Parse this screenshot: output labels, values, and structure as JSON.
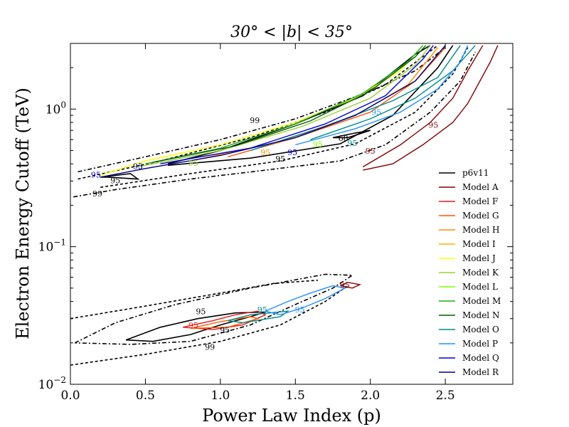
{
  "chart_data": {
    "type": "line",
    "title": "30° < |b| < 35°",
    "xlabel": "Power Law Index (p)",
    "ylabel": "Electron Energy Cutoff (TeV)",
    "xlim": [
      0.0,
      2.95
    ],
    "ylim": [
      0.01,
      3.0
    ],
    "yscale": "log",
    "x_ticks": [
      0.0,
      0.5,
      1.0,
      1.5,
      2.0,
      2.5
    ],
    "x_tick_labels": [
      "0.0",
      "0.5",
      "1.0",
      "1.5",
      "2.0",
      "2.5"
    ],
    "y_ticks": [
      0.01,
      0.1,
      1.0
    ],
    "y_tick_labels": [
      {
        "base": "10",
        "exp": "−2"
      },
      {
        "base": "10",
        "exp": "−1"
      },
      {
        "base": "10",
        "exp": "0"
      }
    ],
    "legend_position": "lower-right",
    "series": [
      {
        "name": "p6v11",
        "color": "#000000"
      },
      {
        "name": "Model A",
        "color": "#800000"
      },
      {
        "name": "Model F",
        "color": "#e31a1c"
      },
      {
        "name": "Model G",
        "color": "#ff5500"
      },
      {
        "name": "Model H",
        "color": "#ff8c00"
      },
      {
        "name": "Model I",
        "color": "#ffb000"
      },
      {
        "name": "Model J",
        "color": "#ffff00"
      },
      {
        "name": "Model K",
        "color": "#9acd32"
      },
      {
        "name": "Model L",
        "color": "#7fff00"
      },
      {
        "name": "Model M",
        "color": "#22aa22"
      },
      {
        "name": "Model N",
        "color": "#006400"
      },
      {
        "name": "Model O",
        "color": "#008b8b"
      },
      {
        "name": "Model P",
        "color": "#1e90ff"
      },
      {
        "name": "Model Q",
        "color": "#0000cd"
      },
      {
        "name": "Model R",
        "color": "#000080"
      }
    ],
    "contours": [
      {
        "series": "p6v11",
        "style": "dashdot",
        "points": [
          [
            0.05,
            0.35
          ],
          [
            0.5,
            0.45
          ],
          [
            1.0,
            0.6
          ],
          [
            1.5,
            0.85
          ],
          [
            2.0,
            1.35
          ],
          [
            2.3,
            1.9
          ],
          [
            2.5,
            2.8
          ]
        ]
      },
      {
        "series": "p6v11",
        "style": "dashdot",
        "points": [
          [
            0.02,
            0.23
          ],
          [
            0.3,
            0.26
          ],
          [
            0.8,
            0.31
          ],
          [
            1.3,
            0.36
          ],
          [
            1.8,
            0.42
          ],
          [
            2.1,
            0.55
          ],
          [
            2.4,
            0.95
          ],
          [
            2.6,
            1.6
          ],
          [
            2.7,
            2.6
          ]
        ]
      },
      {
        "series": "p6v11",
        "style": "dashed",
        "points": [
          [
            0.05,
            0.31
          ],
          [
            0.6,
            0.42
          ],
          [
            1.2,
            0.62
          ],
          [
            1.7,
            0.95
          ],
          [
            2.1,
            1.5
          ],
          [
            2.45,
            2.9
          ]
        ]
      },
      {
        "series": "p6v11",
        "style": "dashed",
        "points": [
          [
            0.2,
            0.27
          ],
          [
            0.8,
            0.34
          ],
          [
            1.4,
            0.42
          ],
          [
            1.9,
            0.56
          ],
          [
            2.3,
            0.95
          ],
          [
            2.55,
            1.8
          ],
          [
            2.65,
            2.8
          ]
        ]
      },
      {
        "series": "p6v11",
        "style": "solid",
        "points": [
          [
            0.2,
            0.32
          ],
          [
            0.4,
            0.34
          ],
          [
            0.45,
            0.31
          ],
          [
            0.25,
            0.32
          ],
          [
            0.2,
            0.32
          ]
        ]
      },
      {
        "series": "p6v11",
        "style": "solid",
        "points": [
          [
            0.65,
            0.4
          ],
          [
            1.0,
            0.5
          ],
          [
            1.5,
            0.78
          ],
          [
            1.95,
            1.25
          ],
          [
            2.3,
            2.5
          ],
          [
            2.4,
            2.9
          ]
        ]
      },
      {
        "series": "p6v11",
        "style": "solid",
        "points": [
          [
            0.65,
            0.39
          ],
          [
            1.2,
            0.44
          ],
          [
            1.8,
            0.56
          ],
          [
            2.15,
            0.9
          ],
          [
            2.45,
            2.0
          ],
          [
            2.55,
            2.9
          ]
        ]
      },
      {
        "series": "p6v11",
        "style": "solid",
        "points": [
          [
            1.75,
            0.62
          ],
          [
            1.9,
            0.67
          ],
          [
            2.0,
            0.7
          ],
          [
            1.85,
            0.62
          ],
          [
            1.75,
            0.62
          ]
        ]
      },
      {
        "series": "Model A",
        "style": "solid",
        "points": [
          [
            1.95,
            0.38
          ],
          [
            2.2,
            0.55
          ],
          [
            2.4,
            0.8
          ],
          [
            2.55,
            1.2
          ],
          [
            2.65,
            1.9
          ],
          [
            2.75,
            2.9
          ]
        ]
      },
      {
        "series": "Model A",
        "style": "solid",
        "points": [
          [
            1.95,
            0.36
          ],
          [
            2.15,
            0.4
          ],
          [
            2.35,
            0.55
          ],
          [
            2.55,
            0.8
          ],
          [
            2.65,
            1.1
          ],
          [
            2.8,
            2.2
          ],
          [
            2.85,
            2.9
          ]
        ]
      },
      {
        "series": "Model G",
        "style": "solid",
        "points": [
          [
            1.05,
            0.45
          ],
          [
            1.5,
            0.62
          ],
          [
            2.0,
            0.95
          ],
          [
            2.3,
            1.6
          ],
          [
            2.5,
            2.8
          ]
        ]
      },
      {
        "series": "Model H",
        "style": "solid",
        "points": [
          [
            0.8,
            0.42
          ],
          [
            1.4,
            0.58
          ],
          [
            1.9,
            0.9
          ],
          [
            2.25,
            1.5
          ],
          [
            2.45,
            2.8
          ]
        ]
      },
      {
        "series": "Model J",
        "style": "solid",
        "points": [
          [
            0.2,
            0.33
          ],
          [
            0.5,
            0.42
          ],
          [
            1.0,
            0.55
          ],
          [
            1.5,
            0.8
          ],
          [
            1.9,
            1.2
          ],
          [
            2.2,
            1.9
          ],
          [
            2.35,
            2.9
          ]
        ]
      },
      {
        "series": "Model K",
        "style": "solid",
        "points": [
          [
            0.45,
            0.38
          ],
          [
            1.0,
            0.5
          ],
          [
            1.55,
            0.75
          ],
          [
            2.0,
            1.2
          ],
          [
            2.3,
            2.1
          ],
          [
            2.4,
            2.9
          ]
        ]
      },
      {
        "series": "Model M",
        "style": "solid",
        "points": [
          [
            0.5,
            0.4
          ],
          [
            1.0,
            0.52
          ],
          [
            1.5,
            0.78
          ],
          [
            1.95,
            1.3
          ],
          [
            2.25,
            2.2
          ],
          [
            2.35,
            2.9
          ]
        ]
      },
      {
        "series": "Model N",
        "style": "solid",
        "points": [
          [
            0.55,
            0.41
          ],
          [
            1.1,
            0.54
          ],
          [
            1.6,
            0.82
          ],
          [
            2.0,
            1.35
          ],
          [
            2.3,
            2.4
          ],
          [
            2.37,
            2.9
          ]
        ]
      },
      {
        "series": "Model O",
        "style": "solid",
        "points": [
          [
            1.2,
            0.5
          ],
          [
            1.7,
            0.75
          ],
          [
            2.15,
            1.15
          ],
          [
            2.45,
            1.7
          ],
          [
            2.6,
            2.9
          ]
        ]
      },
      {
        "series": "Model O",
        "style": "solid",
        "points": [
          [
            1.6,
            0.6
          ],
          [
            2.0,
            0.85
          ],
          [
            2.3,
            1.2
          ],
          [
            2.55,
            1.9
          ],
          [
            2.7,
            2.9
          ]
        ]
      },
      {
        "series": "Model P",
        "style": "solid",
        "points": [
          [
            1.5,
            0.55
          ],
          [
            1.9,
            0.72
          ],
          [
            2.2,
            0.95
          ],
          [
            2.45,
            1.4
          ],
          [
            2.6,
            2.2
          ],
          [
            2.65,
            2.9
          ]
        ]
      },
      {
        "series": "Model Q",
        "style": "solid",
        "points": [
          [
            0.6,
            0.4
          ],
          [
            1.2,
            0.52
          ],
          [
            1.7,
            0.78
          ],
          [
            2.1,
            1.25
          ],
          [
            2.35,
            2.3
          ],
          [
            2.42,
            2.9
          ]
        ]
      },
      {
        "series": "Model R",
        "style": "solid",
        "points": [
          [
            0.2,
            0.32
          ],
          [
            0.5,
            0.37
          ],
          [
            1.0,
            0.46
          ],
          [
            1.5,
            0.62
          ],
          [
            1.9,
            0.9
          ],
          [
            2.3,
            1.6
          ],
          [
            2.5,
            2.9
          ]
        ]
      },
      {
        "series": "p6v11",
        "style": "dashdot",
        "points": [
          [
            0.03,
            0.02
          ],
          [
            0.3,
            0.028
          ],
          [
            0.7,
            0.038
          ],
          [
            1.2,
            0.05
          ],
          [
            1.7,
            0.063
          ],
          [
            1.88,
            0.062
          ],
          [
            1.75,
            0.05
          ],
          [
            1.5,
            0.038
          ],
          [
            1.2,
            0.027
          ],
          [
            0.8,
            0.0205
          ],
          [
            0.4,
            0.0195
          ],
          [
            0.03,
            0.02
          ]
        ]
      },
      {
        "series": "p6v11",
        "style": "dashed",
        "points": [
          [
            0.0,
            0.0138
          ],
          [
            0.5,
            0.0165
          ],
          [
            1.0,
            0.0205
          ],
          [
            1.4,
            0.027
          ],
          [
            1.7,
            0.04
          ],
          [
            1.85,
            0.052
          ]
        ]
      },
      {
        "series": "p6v11",
        "style": "dashed",
        "points": [
          [
            0.0,
            0.03
          ],
          [
            0.5,
            0.037
          ],
          [
            1.0,
            0.046
          ],
          [
            1.35,
            0.054
          ],
          [
            1.65,
            0.057
          ]
        ]
      },
      {
        "series": "p6v11",
        "style": "solid",
        "points": [
          [
            0.37,
            0.021
          ],
          [
            0.6,
            0.026
          ],
          [
            0.85,
            0.03
          ],
          [
            1.1,
            0.033
          ],
          [
            1.3,
            0.0335
          ],
          [
            1.2,
            0.031
          ],
          [
            1.0,
            0.027
          ],
          [
            0.8,
            0.023
          ],
          [
            0.55,
            0.0205
          ],
          [
            0.37,
            0.021
          ]
        ]
      },
      {
        "series": "Model A",
        "style": "solid",
        "points": [
          [
            1.8,
            0.052
          ],
          [
            1.85,
            0.055
          ],
          [
            1.93,
            0.053
          ],
          [
            1.88,
            0.05
          ],
          [
            1.8,
            0.052
          ]
        ]
      },
      {
        "series": "Model F",
        "style": "solid",
        "points": [
          [
            0.75,
            0.026
          ],
          [
            0.95,
            0.029
          ],
          [
            1.1,
            0.032
          ],
          [
            1.25,
            0.034
          ],
          [
            1.3,
            0.032
          ],
          [
            1.15,
            0.027
          ],
          [
            0.95,
            0.025
          ],
          [
            0.75,
            0.026
          ]
        ]
      },
      {
        "series": "Model G",
        "style": "solid",
        "points": [
          [
            0.8,
            0.0255
          ],
          [
            1.0,
            0.0285
          ],
          [
            1.2,
            0.031
          ],
          [
            1.25,
            0.03
          ],
          [
            1.05,
            0.026
          ],
          [
            0.8,
            0.0255
          ]
        ]
      },
      {
        "series": "Model O",
        "style": "solid",
        "points": [
          [
            1.05,
            0.029
          ],
          [
            1.2,
            0.032
          ],
          [
            1.45,
            0.034
          ],
          [
            1.4,
            0.031
          ],
          [
            1.15,
            0.028
          ],
          [
            1.05,
            0.029
          ]
        ]
      },
      {
        "series": "Model P",
        "style": "solid",
        "points": [
          [
            1.3,
            0.034
          ],
          [
            1.45,
            0.04
          ],
          [
            1.6,
            0.046
          ],
          [
            1.75,
            0.052
          ],
          [
            1.83,
            0.05
          ],
          [
            1.7,
            0.042
          ],
          [
            1.55,
            0.036
          ],
          [
            1.4,
            0.032
          ],
          [
            1.3,
            0.034
          ]
        ]
      }
    ],
    "annotations": [
      {
        "text": "99",
        "x": 1.23,
        "y": 0.82,
        "color": "#000000"
      },
      {
        "text": "99",
        "x": 0.18,
        "y": 0.24,
        "color": "#000000"
      },
      {
        "text": "95",
        "x": 0.45,
        "y": 0.38,
        "color": "#000080"
      },
      {
        "text": "95",
        "x": 0.3,
        "y": 0.3,
        "color": "#000000"
      },
      {
        "text": "95",
        "x": 0.17,
        "y": 0.33,
        "color": "#0000cd"
      },
      {
        "text": "95",
        "x": 0.82,
        "y": 0.4,
        "color": "#9acd32"
      },
      {
        "text": "95",
        "x": 1.4,
        "y": 0.43,
        "color": "#000000"
      },
      {
        "text": "95",
        "x": 1.48,
        "y": 0.48,
        "color": "#0000cd"
      },
      {
        "text": "95",
        "x": 1.3,
        "y": 0.48,
        "color": "#ff8c00"
      },
      {
        "text": "95",
        "x": 1.65,
        "y": 0.55,
        "color": "#7fff00"
      },
      {
        "text": "95",
        "x": 2.04,
        "y": 0.94,
        "color": "#1e90ff"
      },
      {
        "text": "95",
        "x": 1.88,
        "y": 0.56,
        "color": "#008b8b"
      },
      {
        "text": "95",
        "x": 2.0,
        "y": 0.49,
        "color": "#800000"
      },
      {
        "text": "95",
        "x": 2.42,
        "y": 0.76,
        "color": "#800000"
      },
      {
        "text": "68",
        "x": 1.82,
        "y": 0.61,
        "color": "#000000"
      },
      {
        "text": "95",
        "x": 0.87,
        "y": 0.0335,
        "color": "#000000"
      },
      {
        "text": "95",
        "x": 1.03,
        "y": 0.0245,
        "color": "#000000"
      },
      {
        "text": "95",
        "x": 1.28,
        "y": 0.0345,
        "color": "#008b8b"
      },
      {
        "text": "95",
        "x": 1.53,
        "y": 0.0345,
        "color": "#1e90ff"
      },
      {
        "text": "95",
        "x": 1.83,
        "y": 0.052,
        "color": "#800000"
      },
      {
        "text": "95",
        "x": 0.82,
        "y": 0.0265,
        "color": "#e31a1c"
      },
      {
        "text": "99",
        "x": 0.93,
        "y": 0.0185,
        "color": "#000000"
      }
    ]
  }
}
